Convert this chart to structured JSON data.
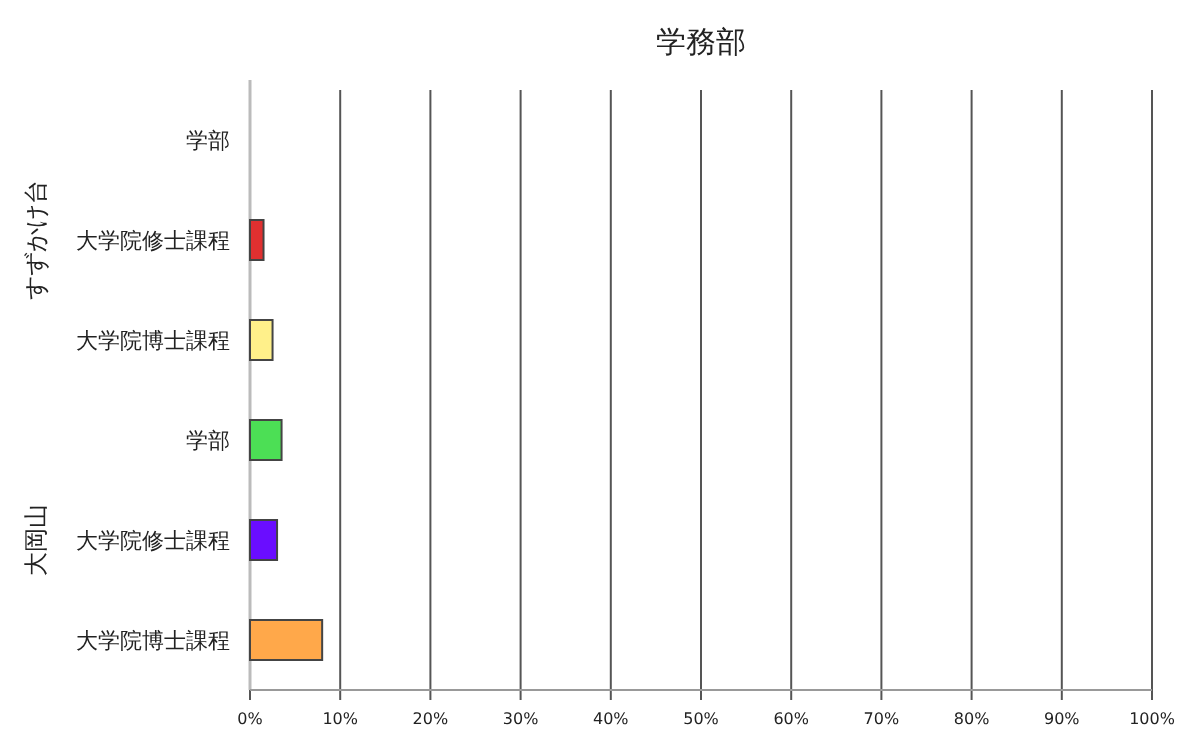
{
  "chart_data": {
    "type": "bar",
    "orientation": "horizontal",
    "title": "学務部",
    "categories": [
      "学部",
      "大学院修士課程",
      "大学院博士課程",
      "学部",
      "大学院修士課程",
      "大学院博士課程"
    ],
    "values": [
      0,
      1.5,
      2.5,
      3.5,
      3,
      8
    ],
    "colors": [
      "#e03030",
      "#e03030",
      "#fff08a",
      "#4cdf55",
      "#6a0dff",
      "#ffa84a"
    ],
    "xlim": [
      0,
      100
    ],
    "xticks": [
      {
        "value": 0,
        "label": "0%"
      },
      {
        "value": 10,
        "label": "10%"
      },
      {
        "value": 20,
        "label": "20%"
      },
      {
        "value": 30,
        "label": "30%"
      },
      {
        "value": 40,
        "label": "40%"
      },
      {
        "value": 50,
        "label": "50%"
      },
      {
        "value": 60,
        "label": "60%"
      },
      {
        "value": 70,
        "label": "70%"
      },
      {
        "value": 80,
        "label": "80%"
      },
      {
        "value": 90,
        "label": "90%"
      },
      {
        "value": 100,
        "label": "100%"
      }
    ],
    "grid": "x",
    "annotations": [
      "すずかけ台",
      "大岡山"
    ]
  }
}
